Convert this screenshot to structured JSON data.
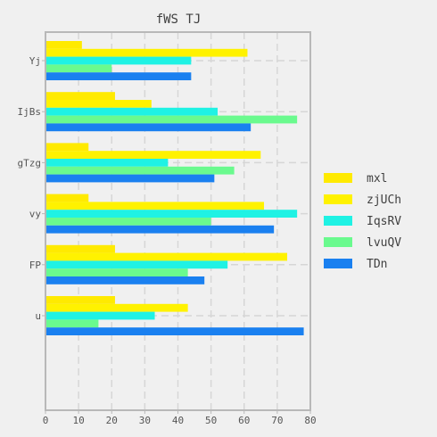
{
  "chart_data": {
    "type": "bar",
    "orientation": "horizontal",
    "title": "fWS TJ",
    "xlabel": "",
    "ylabel": "",
    "xlim": [
      0,
      80
    ],
    "xticks": [
      "0",
      "10",
      "20",
      "30",
      "40",
      "50",
      "60",
      "70",
      "80"
    ],
    "categories": [
      "Yj",
      "IjBs",
      "gTzg",
      "vy",
      "FP",
      "u"
    ],
    "grid": true,
    "legend_position": "right",
    "series": [
      {
        "name": "mxl",
        "color": "#ffea00",
        "values": [
          11,
          21,
          13,
          13,
          21,
          21
        ]
      },
      {
        "name": "zjUCh",
        "color": "#fff200",
        "values": [
          61,
          32,
          65,
          66,
          73,
          43
        ]
      },
      {
        "name": "IqsRV",
        "color": "#1ff2e4",
        "values": [
          44,
          52,
          37,
          76,
          55,
          33
        ]
      },
      {
        "name": "lvuQV",
        "color": "#6afa8e",
        "values": [
          20,
          76,
          57,
          50,
          43,
          16
        ]
      },
      {
        "name": "TDn",
        "color": "#1a80f0",
        "values": [
          44,
          62,
          51,
          69,
          48,
          78
        ]
      }
    ]
  }
}
